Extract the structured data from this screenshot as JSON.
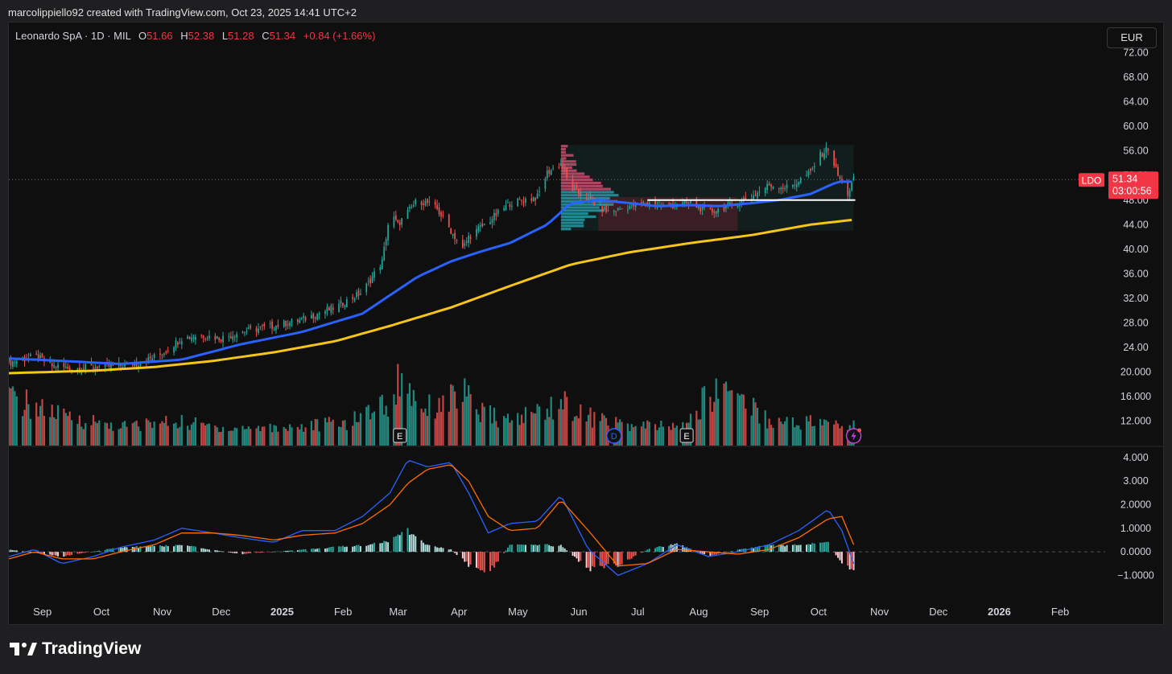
{
  "header": {
    "text": "marcolippiello92 created with TradingView.com, Oct 23, 2025 14:41 UTC+2"
  },
  "legend": {
    "symbol": "Leonardo SpA · 1D · MIL",
    "open_label": "O",
    "open": "51.66",
    "high_label": "H",
    "high": "52.38",
    "low_label": "L",
    "low": "51.28",
    "close_label": "C",
    "close": "51.34",
    "change": "+0.84 (+1.66%)"
  },
  "currency_button": "EUR",
  "price_label": {
    "ticker": "LDO",
    "price": "51.34",
    "countdown": "03:00:56"
  },
  "footer": {
    "brand": "TradingView"
  },
  "colors": {
    "up": "#26a69a",
    "down": "#ef5350",
    "ma_fast": "#2962ff",
    "ma_slow": "#f5c518",
    "macd": "#2962ff",
    "signal": "#ff6d00",
    "price_tag": "#f23645",
    "background": "#0f0f10"
  },
  "markers": [
    {
      "text": "E",
      "type": "earnings",
      "date": "2025-03-06"
    },
    {
      "text": "D",
      "type": "dividend",
      "date": "2025-06-23"
    },
    {
      "text": "E",
      "type": "earnings",
      "date": "2025-07-30"
    },
    {
      "type": "lightning",
      "date": "2025-10-23"
    }
  ],
  "chart_data": [
    {
      "type": "candlestick",
      "title": "Leonardo SpA · 1D · MIL",
      "x_ticks": [
        "Sep",
        "Oct",
        "Nov",
        "Dec",
        "2025",
        "Feb",
        "Mar",
        "Apr",
        "May",
        "Jun",
        "Jul",
        "Aug",
        "Sep",
        "Oct",
        "Nov",
        "Dec",
        "2026",
        "Feb"
      ],
      "y_ticks": [
        "72.00",
        "68.00",
        "64.00",
        "60.00",
        "56.00",
        "52.00",
        "48.00",
        "44.00",
        "40.00",
        "36.00",
        "32.00",
        "28.00",
        "24.00",
        "20.000",
        "16.000",
        "12.000"
      ],
      "ylim": [
        8,
        73
      ],
      "x_range": [
        "2024-08-19",
        "2026-02-28"
      ],
      "close_series": {
        "x": [
          "2024-08-19",
          "2024-09-02",
          "2024-09-10",
          "2024-09-20",
          "2024-10-01",
          "2024-10-15",
          "2024-10-25",
          "2024-11-05",
          "2024-11-15",
          "2024-11-25",
          "2024-12-05",
          "2024-12-15",
          "2025-01-01",
          "2025-01-15",
          "2025-02-01",
          "2025-02-15",
          "2025-02-25",
          "2025-03-01",
          "2025-03-05",
          "2025-03-10",
          "2025-03-15",
          "2025-03-20",
          "2025-03-25",
          "2025-04-01",
          "2025-04-07",
          "2025-04-10",
          "2025-04-20",
          "2025-05-01",
          "2025-05-15",
          "2025-05-20",
          "2025-05-27",
          "2025-06-01",
          "2025-06-10",
          "2025-06-20",
          "2025-07-01",
          "2025-07-10",
          "2025-07-20",
          "2025-08-01",
          "2025-08-10",
          "2025-08-20",
          "2025-09-01",
          "2025-09-10",
          "2025-09-20",
          "2025-10-01",
          "2025-10-05",
          "2025-10-10",
          "2025-10-15",
          "2025-10-20",
          "2025-10-23"
        ],
        "y": [
          21.5,
          22.5,
          21.0,
          20.5,
          20.8,
          21.0,
          21.5,
          23.0,
          25.5,
          26.0,
          25.5,
          26.5,
          27.5,
          28.5,
          30.5,
          33.0,
          38.0,
          46.0,
          44.0,
          46.0,
          48.0,
          47.5,
          46.5,
          43.0,
          40.0,
          42.0,
          44.5,
          47.5,
          48.5,
          52.5,
          54.0,
          50.0,
          48.0,
          46.0,
          47.0,
          47.5,
          47.0,
          47.5,
          46.0,
          47.0,
          48.5,
          50.5,
          50.0,
          52.5,
          55.0,
          56.5,
          52.0,
          49.0,
          51.34
        ]
      },
      "series": [
        {
          "name": "MA fast",
          "color": "#2962ff",
          "x": [
            "2024-08-19",
            "2024-09-15",
            "2024-10-15",
            "2024-11-15",
            "2024-12-15",
            "2025-01-15",
            "2025-02-15",
            "2025-03-01",
            "2025-03-15",
            "2025-04-01",
            "2025-04-15",
            "2025-05-01",
            "2025-05-20",
            "2025-06-01",
            "2025-06-15",
            "2025-07-01",
            "2025-07-15",
            "2025-08-01",
            "2025-08-15",
            "2025-09-01",
            "2025-09-15",
            "2025-10-01",
            "2025-10-15",
            "2025-10-23"
          ],
          "y": [
            22.2,
            21.8,
            21.3,
            22.0,
            24.5,
            26.5,
            29.5,
            32.5,
            35.5,
            38.0,
            39.5,
            41.0,
            44.0,
            47.5,
            48.0,
            47.5,
            47.0,
            47.2,
            47.0,
            47.5,
            48.0,
            49.0,
            51.0,
            51.0
          ]
        },
        {
          "name": "MA slow",
          "color": "#f5c518",
          "x": [
            "2024-08-19",
            "2024-10-01",
            "2024-11-01",
            "2024-12-01",
            "2025-01-01",
            "2025-02-01",
            "2025-03-01",
            "2025-04-01",
            "2025-05-01",
            "2025-06-01",
            "2025-07-01",
            "2025-08-01",
            "2025-09-01",
            "2025-10-01",
            "2025-10-23"
          ],
          "y": [
            19.8,
            20.2,
            20.8,
            21.8,
            23.2,
            25.0,
            27.5,
            30.5,
            34.0,
            37.5,
            39.5,
            41.0,
            42.3,
            44.0,
            44.8
          ]
        }
      ],
      "volume": {
        "x": [
          "2024-08-19",
          "2024-09-16",
          "2024-10-15",
          "2024-11-12",
          "2024-12-10",
          "2025-01-15",
          "2025-02-10",
          "2025-02-20",
          "2025-03-03",
          "2025-03-06",
          "2025-03-12",
          "2025-03-20",
          "2025-04-07",
          "2025-04-15",
          "2025-05-01",
          "2025-05-27",
          "2025-06-10",
          "2025-07-01",
          "2025-07-30",
          "2025-08-07",
          "2025-08-20",
          "2025-09-10",
          "2025-10-01",
          "2025-10-20"
        ],
        "y": [
          5.0,
          3.0,
          2.0,
          2.5,
          1.8,
          2.0,
          2.5,
          4.0,
          4.5,
          7.5,
          5.5,
          4.0,
          5.5,
          3.5,
          2.5,
          4.5,
          3.0,
          2.0,
          2.0,
          4.5,
          6.5,
          2.5,
          2.5,
          2.0
        ],
        "unit": "relative"
      },
      "horizontal_levels": [
        {
          "y": 48.0,
          "color": "#ffffff",
          "label": ""
        },
        {
          "y": 51.34,
          "color": "#f23645",
          "label": "LDO 51.34"
        }
      ],
      "volume_profile": {
        "x_range": [
          "2025-05-27",
          "2025-10-23"
        ],
        "y_range": [
          43.0,
          57.0
        ],
        "value_area_low": 43.0,
        "point_of_control": 48.0
      }
    },
    {
      "type": "line",
      "title": "",
      "y_ticks": [
        "4.000",
        "3.000",
        "2.0000",
        "1.0000",
        "0.0000",
        "−1.0000"
      ],
      "ylim": [
        -1.6,
        4.2
      ],
      "series": [
        {
          "name": "MACD",
          "color": "#2962ff",
          "x": [
            "2024-08-19",
            "2024-09-01",
            "2024-09-15",
            "2024-10-01",
            "2024-10-15",
            "2024-11-01",
            "2024-11-15",
            "2024-12-01",
            "2024-12-15",
            "2025-01-01",
            "2025-01-15",
            "2025-02-01",
            "2025-02-15",
            "2025-03-01",
            "2025-03-10",
            "2025-03-20",
            "2025-04-01",
            "2025-04-10",
            "2025-04-20",
            "2025-05-01",
            "2025-05-15",
            "2025-05-27",
            "2025-06-10",
            "2025-06-25",
            "2025-07-10",
            "2025-07-25",
            "2025-08-10",
            "2025-08-25",
            "2025-09-10",
            "2025-09-25",
            "2025-10-10",
            "2025-10-17",
            "2025-10-23"
          ],
          "y": [
            -0.2,
            0.1,
            -0.5,
            -0.2,
            0.2,
            0.5,
            1.0,
            0.8,
            0.6,
            0.4,
            0.9,
            0.9,
            1.5,
            2.5,
            3.9,
            3.6,
            3.8,
            2.5,
            0.8,
            1.2,
            1.3,
            2.4,
            0.1,
            -1.0,
            -0.5,
            0.3,
            -0.2,
            0.0,
            0.3,
            0.9,
            1.8,
            0.9,
            -0.5
          ]
        },
        {
          "name": "Signal",
          "color": "#ff6d00",
          "x": [
            "2024-08-19",
            "2024-09-01",
            "2024-09-15",
            "2024-10-01",
            "2024-10-15",
            "2024-11-01",
            "2024-11-15",
            "2024-12-01",
            "2024-12-15",
            "2025-01-01",
            "2025-01-15",
            "2025-02-01",
            "2025-02-15",
            "2025-03-01",
            "2025-03-10",
            "2025-03-20",
            "2025-04-01",
            "2025-04-10",
            "2025-04-20",
            "2025-05-01",
            "2025-05-15",
            "2025-05-27",
            "2025-06-10",
            "2025-06-25",
            "2025-07-10",
            "2025-07-25",
            "2025-08-10",
            "2025-08-25",
            "2025-09-10",
            "2025-09-25",
            "2025-10-10",
            "2025-10-17",
            "2025-10-23"
          ],
          "y": [
            -0.3,
            0.0,
            -0.3,
            -0.3,
            0.0,
            0.3,
            0.8,
            0.8,
            0.7,
            0.5,
            0.7,
            0.8,
            1.2,
            2.0,
            2.9,
            3.5,
            3.7,
            3.0,
            1.5,
            0.9,
            1.0,
            2.2,
            0.9,
            -0.6,
            -0.5,
            0.1,
            0.0,
            -0.1,
            0.1,
            0.6,
            1.4,
            1.5,
            0.3
          ]
        }
      ],
      "histogram": {
        "x": [
          "2024-08-19",
          "2024-09-15",
          "2024-10-15",
          "2024-11-15",
          "2024-12-15",
          "2025-01-15",
          "2025-02-15",
          "2025-03-01",
          "2025-03-10",
          "2025-03-20",
          "2025-04-01",
          "2025-04-10",
          "2025-04-20",
          "2025-05-01",
          "2025-05-15",
          "2025-05-27",
          "2025-06-10",
          "2025-06-25",
          "2025-07-10",
          "2025-07-25",
          "2025-08-10",
          "2025-08-25",
          "2025-09-10",
          "2025-09-25",
          "2025-10-10",
          "2025-10-17",
          "2025-10-23"
        ],
        "y": [
          0.1,
          -0.2,
          0.2,
          0.3,
          -0.1,
          0.1,
          0.3,
          0.5,
          1.0,
          0.3,
          0.1,
          -0.6,
          -1.0,
          0.3,
          0.3,
          0.3,
          -0.8,
          -0.6,
          0.1,
          0.4,
          -0.2,
          0.1,
          0.3,
          0.3,
          0.4,
          -0.6,
          -0.8
        ]
      }
    }
  ]
}
